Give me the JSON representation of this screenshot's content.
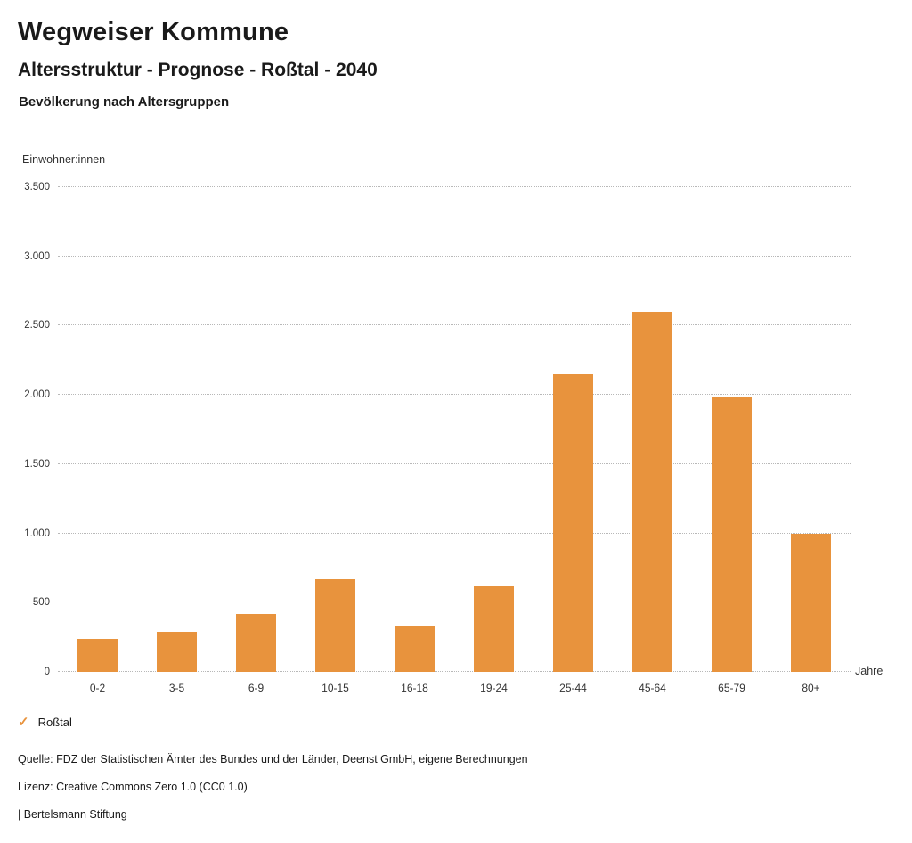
{
  "header": {
    "title": "Wegweiser Kommune",
    "subtitle": "Altersstruktur - Prognose - Roßtal - 2040",
    "section": "Bevölkerung nach Altersgruppen"
  },
  "chart_data": {
    "type": "bar",
    "title": "Altersstruktur - Prognose - Roßtal - 2040",
    "subtitle": "Bevölkerung nach Altersgruppen",
    "ylabel": "Einwohner:innen",
    "xlabel": "Jahre",
    "categories": [
      "0-2",
      "3-5",
      "6-9",
      "10-15",
      "16-18",
      "19-24",
      "25-44",
      "45-64",
      "65-79",
      "80+"
    ],
    "series": [
      {
        "name": "Roßtal",
        "values": [
          240,
          290,
          420,
          670,
          330,
          620,
          2150,
          2600,
          1990,
          1000
        ]
      }
    ],
    "ylim": [
      0,
      3500
    ],
    "yticks": [
      {
        "value": 0,
        "label": "0"
      },
      {
        "value": 500,
        "label": "500"
      },
      {
        "value": 1000,
        "label": "1.000"
      },
      {
        "value": 1500,
        "label": "1.500"
      },
      {
        "value": 2000,
        "label": "2.000"
      },
      {
        "value": 2500,
        "label": "2.500"
      },
      {
        "value": 3000,
        "label": "3.000"
      },
      {
        "value": 3500,
        "label": "3.500"
      }
    ],
    "grid": "horizontal-dotted",
    "bar_color": "#E8933D",
    "legend_position": "bottom-left"
  },
  "legend": {
    "label": "Roßtal",
    "check_icon": "✓",
    "color": "#E8933D"
  },
  "footer": {
    "source": "Quelle: FDZ der Statistischen Ämter des Bundes und der Länder, Deenst GmbH, eigene Berechnungen",
    "license": "Lizenz: Creative Commons Zero 1.0 (CC0 1.0)",
    "attribution": "| Bertelsmann Stiftung"
  }
}
